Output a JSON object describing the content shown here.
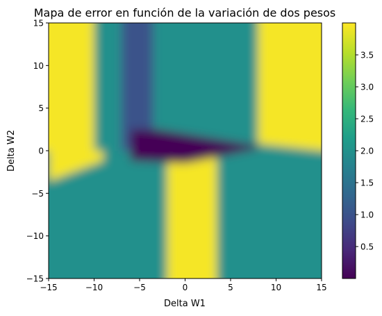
{
  "chart_data": {
    "type": "heatmap",
    "title": "Mapa de error en función de la variación de dos pesos",
    "xlabel": "Delta W1",
    "ylabel": "Delta W2",
    "xlim": [
      -15,
      15
    ],
    "ylim": [
      -15,
      15
    ],
    "x_ticks": [
      -15,
      -10,
      -5,
      0,
      5,
      10,
      15
    ],
    "x_tick_labels": [
      "−15",
      "−10",
      "−5",
      "0",
      "5",
      "10",
      "15"
    ],
    "y_ticks": [
      -15,
      -10,
      -5,
      0,
      5,
      10,
      15
    ],
    "y_tick_labels": [
      "−15",
      "−10",
      "−5",
      "0",
      "5",
      "10",
      "15"
    ],
    "colormap": "viridis",
    "value_range": [
      0.0,
      4.0
    ],
    "colorbar_ticks": [
      0.5,
      1.0,
      1.5,
      2.0,
      2.5,
      3.0,
      3.5
    ],
    "colorbar_tick_labels": [
      "0.5",
      "1.0",
      "1.5",
      "2.0",
      "2.5",
      "3.0",
      "3.5"
    ],
    "grid": false,
    "regions_upper": [
      {
        "w1_from": -15,
        "w1_to": -10,
        "error": 3.95
      },
      {
        "w1_from": -10,
        "w1_to": -7,
        "error": 2.0
      },
      {
        "w1_from": -7,
        "w1_to": -3.5,
        "error": 1.0
      },
      {
        "w1_from": -3.5,
        "w1_to": 8,
        "error": 2.0
      },
      {
        "w1_from": 8,
        "w1_to": 15,
        "error": 3.95
      }
    ],
    "regions_lower": [
      {
        "w1_from": -15,
        "w1_to": -2,
        "error": 2.0
      },
      {
        "w1_from": -2,
        "w1_to": 3.5,
        "error": 3.95
      },
      {
        "w1_from": 3.5,
        "w1_to": 15,
        "error": 2.0
      }
    ],
    "minimum_region": {
      "w1_from": -6,
      "w1_to": 8,
      "w2_from": -1.5,
      "w2_to": 2.5,
      "error": 0.02
    }
  }
}
